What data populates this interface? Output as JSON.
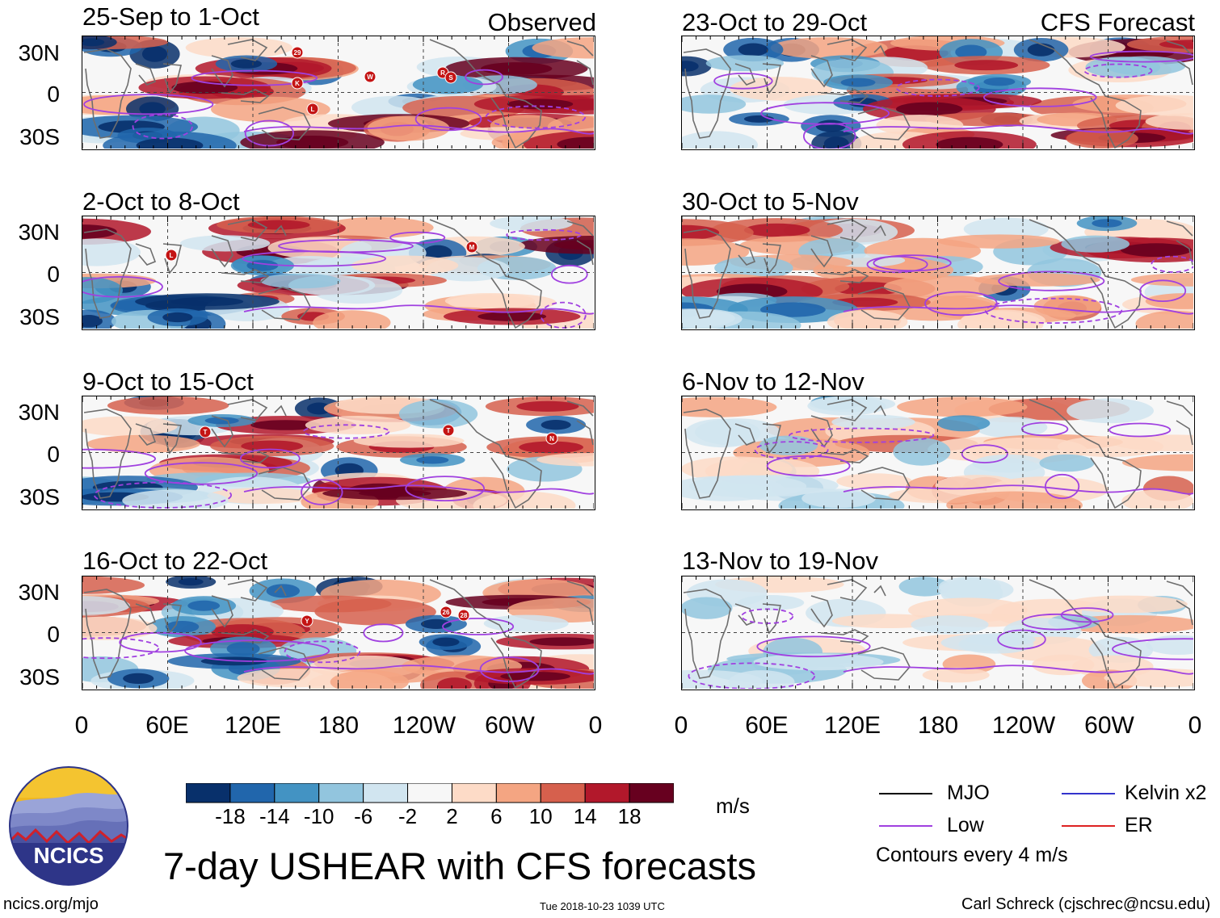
{
  "observed_label": "Observed",
  "forecast_label": "CFS Forecast",
  "panels": [
    {
      "title": "25-Sep to 1-Oct",
      "column": "observed"
    },
    {
      "title": "2-Oct to 8-Oct",
      "column": "observed"
    },
    {
      "title": "9-Oct to 15-Oct",
      "column": "observed"
    },
    {
      "title": "16-Oct to 22-Oct",
      "column": "observed"
    },
    {
      "title": "23-Oct to 29-Oct",
      "column": "forecast"
    },
    {
      "title": "30-Oct to 5-Nov",
      "column": "forecast"
    },
    {
      "title": "6-Nov to 12-Nov",
      "column": "forecast"
    },
    {
      "title": "13-Nov to 19-Nov",
      "column": "forecast"
    }
  ],
  "lat_labels": [
    "30N",
    "0",
    "30S"
  ],
  "lon_labels": [
    "0",
    "60E",
    "120E",
    "180",
    "120W",
    "60W",
    "0"
  ],
  "colorbar": {
    "colors": [
      "#08306b",
      "#2166ac",
      "#4393c3",
      "#92c5de",
      "#d1e5f0",
      "#f7f7f7",
      "#fddbc7",
      "#f4a582",
      "#d6604d",
      "#b2182b",
      "#67001f"
    ],
    "labels": [
      "-18",
      "-14",
      "-10",
      "-6",
      "-2",
      "2",
      "6",
      "10",
      "14",
      "18"
    ],
    "unit": "m/s"
  },
  "legend": {
    "items": [
      {
        "label": "MJO",
        "color": "#000000"
      },
      {
        "label": "Kelvin x2",
        "color": "#3333cc"
      },
      {
        "label": "Low",
        "color": "#a040e0"
      },
      {
        "label": "ER",
        "color": "#dd2222"
      }
    ],
    "contour_note": "Contours every 4 m/s"
  },
  "logo_text": "NCICS",
  "main_title": "7-day USHEAR with CFS forecasts",
  "footer": {
    "url": "ncics.org/mjo",
    "timestamp": "Tue 2018-10-23 1039 UTC",
    "credit": "Carl Schreck (cjschrec@ncsu.edu)"
  },
  "storm_markers": [
    {
      "panel": 0,
      "labels": [
        "29",
        "K",
        "L",
        "W",
        "R",
        "S"
      ]
    },
    {
      "panel": 1,
      "labels": [
        "L",
        "M"
      ]
    },
    {
      "panel": 2,
      "labels": [
        "T",
        "T",
        "N"
      ]
    },
    {
      "panel": 3,
      "labels": [
        "Y",
        "26",
        "28"
      ]
    }
  ]
}
